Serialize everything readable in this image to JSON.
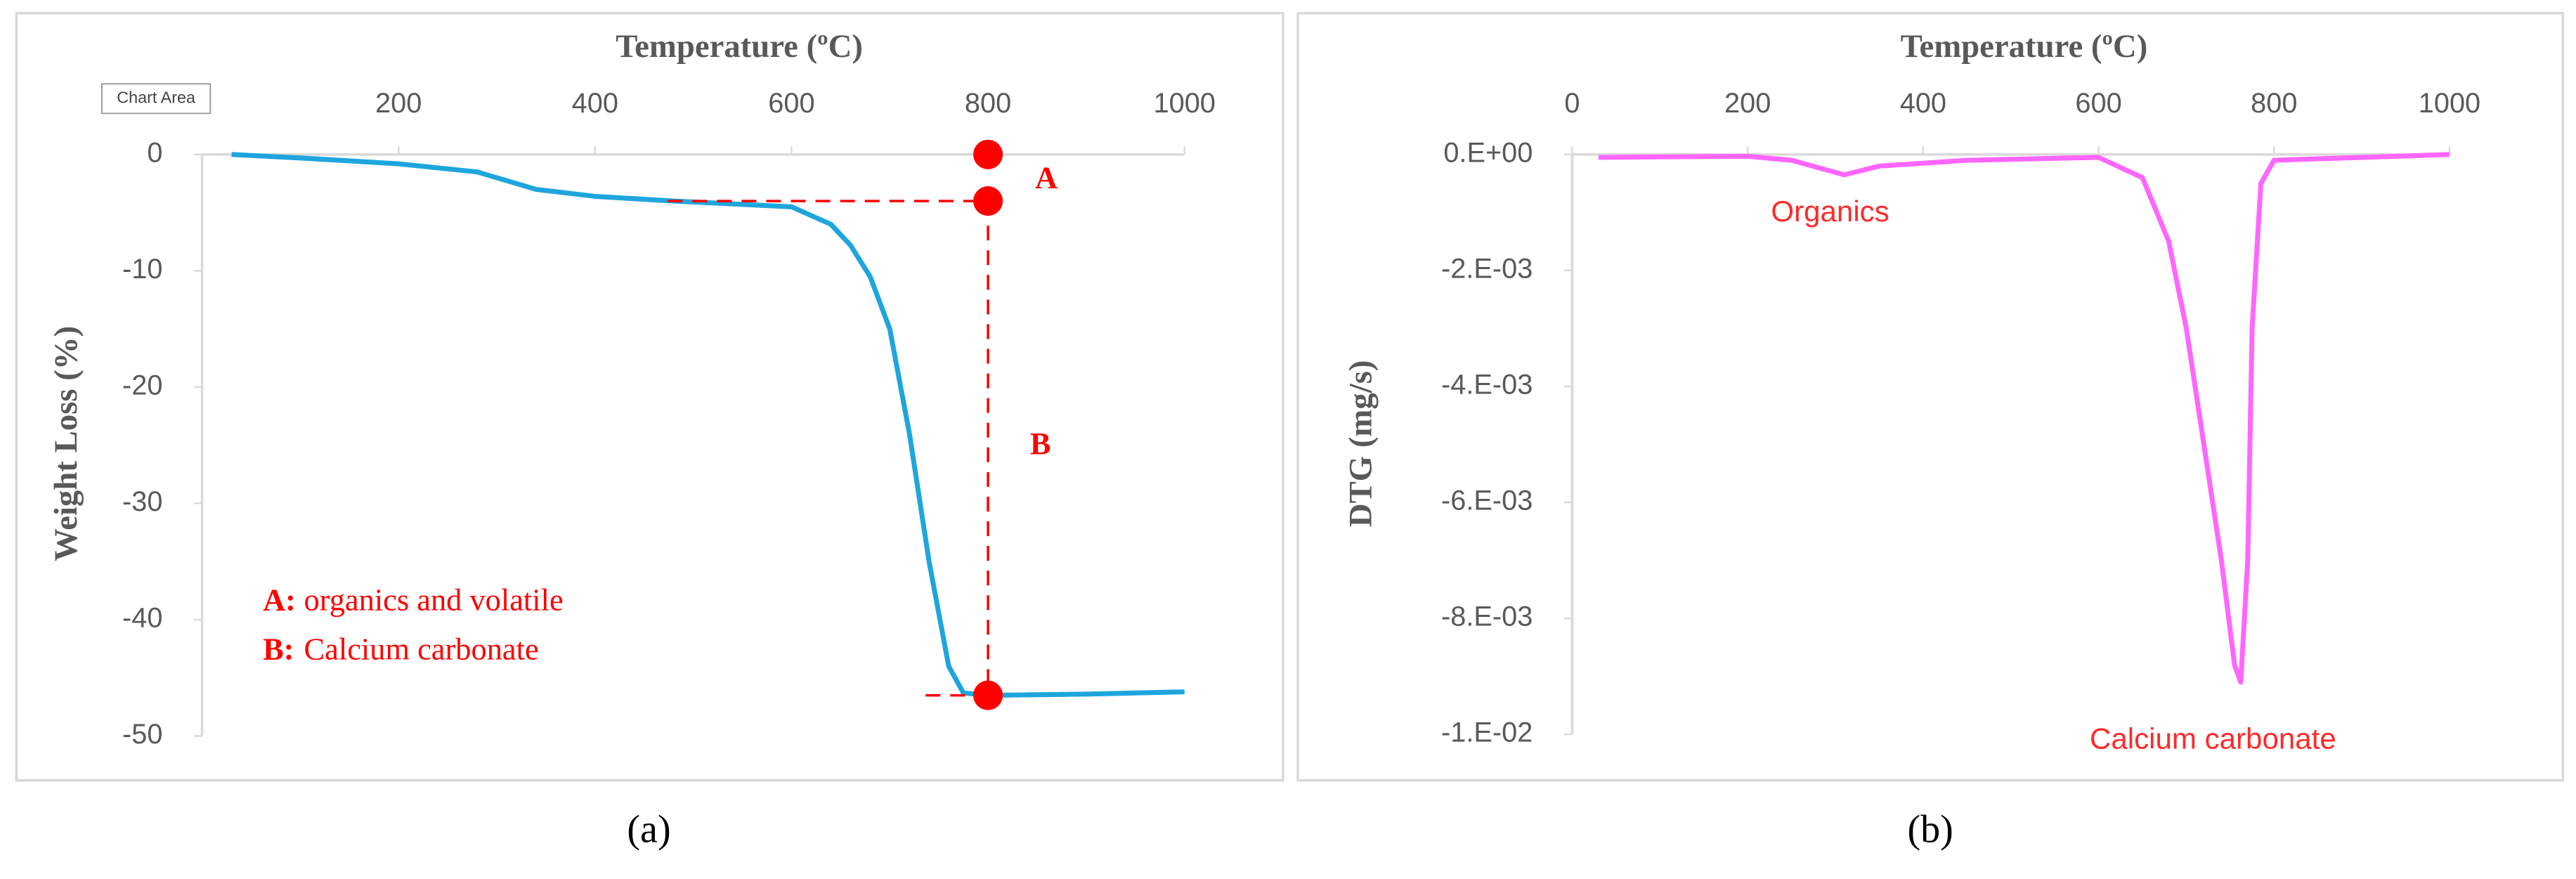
{
  "chart_data": [
    {
      "type": "line",
      "panel_label": "(a)",
      "x_label": "Temperature (ºC)",
      "y_label": "Weight Loss (%)",
      "xlim": [
        0,
        1000
      ],
      "xticks": [
        200,
        400,
        600,
        800,
        1000
      ],
      "ylim": [
        -50,
        0
      ],
      "yticks": [
        0,
        -10,
        -20,
        -30,
        -40,
        -50
      ],
      "series": [
        {
          "color": "#1ea6dc",
          "x": [
            30,
            100,
            200,
            280,
            340,
            400,
            480,
            600,
            640,
            660,
            680,
            700,
            720,
            740,
            760,
            775,
            800,
            900,
            1000
          ],
          "y": [
            0,
            -0.3,
            -0.8,
            -1.5,
            -3,
            -3.6,
            -4,
            -4.5,
            -6,
            -7.8,
            -10.5,
            -15,
            -24,
            -35,
            -44,
            -46.3,
            -46.5,
            -46.4,
            -46.2
          ]
        }
      ],
      "markers": {
        "color": "#ff0000",
        "x": [
          800,
          800,
          800
        ],
        "y": [
          0,
          -4,
          -46.5
        ]
      },
      "annotations": [
        "A",
        "B",
        "A:",
        "organics and volatile",
        "B:",
        "Calcium carbonate"
      ],
      "tooltip": "Chart Area"
    },
    {
      "type": "line",
      "panel_label": "(b)",
      "x_label": "Temperature (ºC)",
      "y_label": "DTG  (mg/s)",
      "xlim": [
        0,
        1000
      ],
      "xticks": [
        0,
        200,
        400,
        600,
        800,
        1000
      ],
      "ylim": [
        -0.01,
        0
      ],
      "yticks": [
        {
          "value": 0,
          "label": "0.E+00"
        },
        {
          "value": -0.002,
          "label": "-2.E-03"
        },
        {
          "value": -0.004,
          "label": "-4.E-03"
        },
        {
          "value": -0.006,
          "label": "-6.E-03"
        },
        {
          "value": -0.008,
          "label": "-8.E-03"
        },
        {
          "value": -0.01,
          "label": "-1.E-02"
        }
      ],
      "series": [
        {
          "color": "#ff66ff",
          "x": [
            30,
            200,
            250,
            310,
            350,
            450,
            600,
            650,
            680,
            700,
            720,
            740,
            755,
            762,
            770,
            775,
            785,
            800,
            1000
          ],
          "y": [
            -5e-05,
            -3e-05,
            -0.0001,
            -0.00035,
            -0.0002,
            -0.0001,
            -5e-05,
            -0.0004,
            -0.0015,
            -0.003,
            -0.005,
            -0.007,
            -0.0088,
            -0.0091,
            -0.007,
            -0.003,
            -0.0005,
            -0.0001,
            0
          ]
        }
      ],
      "annotations": [
        "Organics",
        "Calcium carbonate"
      ]
    }
  ]
}
